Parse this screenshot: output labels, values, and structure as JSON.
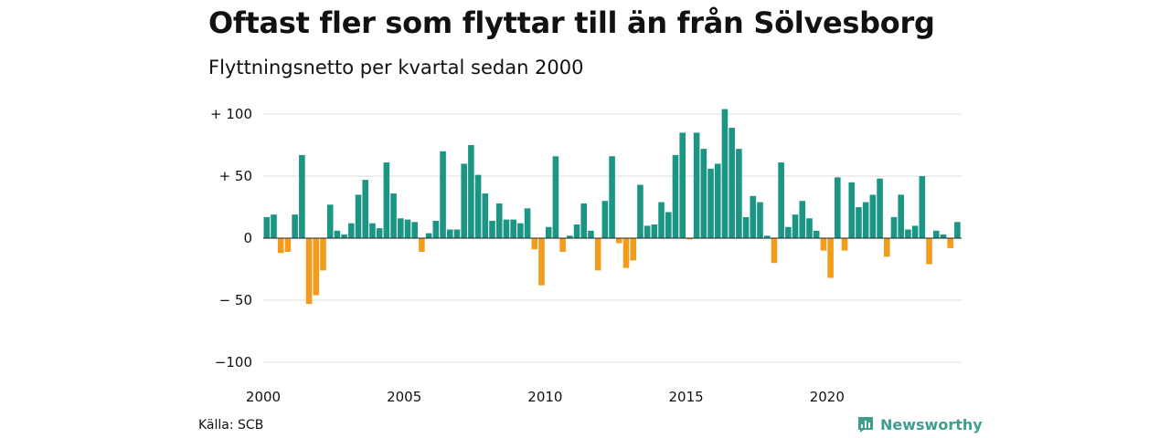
{
  "title": "Oftast fler som flyttar till än från Sölvesborg",
  "subtitle": "Flyttningsnetto per kvartal sedan 2000",
  "source": "Källa: SCB",
  "brand": "Newsworthy",
  "chart_data": {
    "type": "bar",
    "ylim": [
      -110,
      110
    ],
    "yticks": [
      {
        "value": 100,
        "label": "+ 100"
      },
      {
        "value": 50,
        "label": "+  50"
      },
      {
        "value": 0,
        "label": "0"
      },
      {
        "value": -50,
        "label": "− 50"
      },
      {
        "value": -100,
        "label": "−100"
      }
    ],
    "xticks": [
      {
        "label": "2000",
        "index": 0
      },
      {
        "label": "2005",
        "index": 20
      },
      {
        "label": "2010",
        "index": 40
      },
      {
        "label": "2015",
        "index": 60
      },
      {
        "label": "2020",
        "index": 80
      }
    ],
    "colors": {
      "positive": "#1b9584",
      "negative": "#f39c1c",
      "grid": "#dddddd"
    },
    "values": [
      17,
      19,
      -12,
      -11,
      19,
      67,
      -53,
      -46,
      -26,
      27,
      6,
      3,
      12,
      35,
      47,
      12,
      8,
      61,
      36,
      16,
      15,
      13,
      -11,
      4,
      14,
      70,
      7,
      7,
      60,
      75,
      51,
      36,
      14,
      28,
      15,
      15,
      12,
      24,
      -9,
      -38,
      9,
      66,
      -11,
      2,
      11,
      28,
      6,
      -26,
      30,
      66,
      -4,
      -24,
      -18,
      43,
      10,
      11,
      29,
      21,
      67,
      85,
      -1,
      85,
      72,
      56,
      60,
      104,
      89,
      72,
      17,
      34,
      29,
      2,
      -20,
      61,
      9,
      19,
      30,
      16,
      6,
      -10,
      -32,
      49,
      -10,
      45,
      25,
      29,
      35,
      48,
      -15,
      17,
      35,
      7,
      10,
      50,
      -21,
      6,
      3,
      -8,
      13
    ]
  }
}
